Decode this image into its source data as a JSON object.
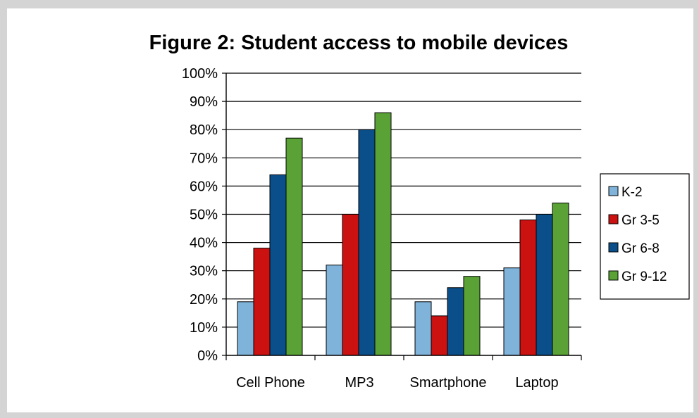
{
  "chart_data": {
    "type": "bar",
    "title": "Figure 2: Student access to mobile devices",
    "xlabel": "",
    "ylabel": "",
    "categories": [
      "Cell Phone",
      "MP3",
      "Smartphone",
      "Laptop"
    ],
    "ylim": [
      0,
      100
    ],
    "ytick_labels": [
      "0%",
      "10%",
      "20%",
      "30%",
      "40%",
      "50%",
      "60%",
      "70%",
      "80%",
      "90%",
      "100%"
    ],
    "grid": true,
    "legend_position": "right",
    "series": [
      {
        "name": "K-2",
        "color": "#7fb3d9",
        "values": [
          19,
          32,
          19,
          31
        ]
      },
      {
        "name": "Gr 3-5",
        "color": "#cc1111",
        "values": [
          38,
          50,
          14,
          48
        ]
      },
      {
        "name": "Gr 6-8",
        "color": "#0b4f8a",
        "values": [
          64,
          80,
          24,
          50
        ]
      },
      {
        "name": "Gr 9-12",
        "color": "#5aa236",
        "values": [
          77,
          86,
          28,
          54
        ]
      }
    ]
  }
}
